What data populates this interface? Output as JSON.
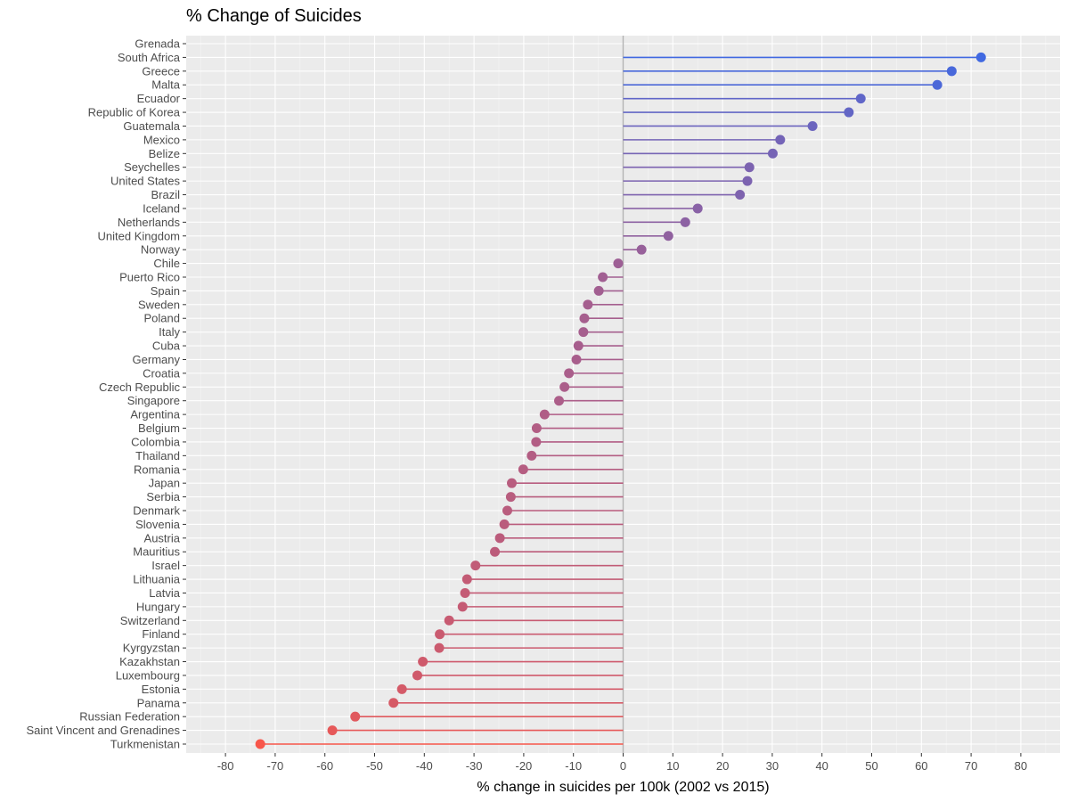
{
  "chart_data": {
    "type": "lollipop",
    "title": "% Change of Suicides",
    "xlabel": "% change in suicides per 100k (2002 vs 2015)",
    "ylabel": "",
    "xlim": [
      -80,
      80
    ],
    "x_ticks": [
      -80,
      -70,
      -60,
      -50,
      -40,
      -30,
      -20,
      -10,
      0,
      10,
      20,
      30,
      40,
      50,
      60,
      70,
      80
    ],
    "x_tick_labels": [
      "-80",
      "-70",
      "-60",
      "-50",
      "-40",
      "-30",
      "-20",
      "-10",
      "0",
      "10",
      "20",
      "30",
      "40",
      "50",
      "60",
      "70",
      "80"
    ],
    "grid": true,
    "legend": "none",
    "color_low": "#f8564a",
    "color_high": "#4169e1",
    "categories": [
      "Grenada",
      "South Africa",
      "Greece",
      "Malta",
      "Ecuador",
      "Republic of Korea",
      "Guatemala",
      "Mexico",
      "Belize",
      "Seychelles",
      "United States",
      "Brazil",
      "Iceland",
      "Netherlands",
      "United Kingdom",
      "Norway",
      "Chile",
      "Puerto Rico",
      "Spain",
      "Sweden",
      "Poland",
      "Italy",
      "Cuba",
      "Germany",
      "Croatia",
      "Czech Republic",
      "Singapore",
      "Argentina",
      "Belgium",
      "Colombia",
      "Thailand",
      "Romania",
      "Japan",
      "Serbia",
      "Denmark",
      "Slovenia",
      "Austria",
      "Mauritius",
      "Israel",
      "Lithuania",
      "Latvia",
      "Hungary",
      "Switzerland",
      "Finland",
      "Kyrgyzstan",
      "Kazakhstan",
      "Luxembourg",
      "Estonia",
      "Panama",
      "Russian Federation",
      "Saint Vincent and Grenadines",
      "Turkmenistan"
    ],
    "values": [
      null,
      72.0,
      66.1,
      63.2,
      47.8,
      45.4,
      38.1,
      31.6,
      30.1,
      25.4,
      25.0,
      23.5,
      15.0,
      12.5,
      9.1,
      3.7,
      -1.0,
      -4.1,
      -4.9,
      -7.1,
      -7.8,
      -8.0,
      -9.0,
      -9.4,
      -10.9,
      -11.8,
      -12.9,
      -15.8,
      -17.4,
      -17.5,
      -18.4,
      -20.1,
      -22.4,
      -22.6,
      -23.3,
      -23.9,
      -24.8,
      -25.8,
      -29.7,
      -31.4,
      -31.8,
      -32.3,
      -35.0,
      -36.9,
      -37.0,
      -40.3,
      -41.4,
      -44.5,
      -46.2,
      -53.9,
      -58.5,
      -73.0
    ]
  }
}
